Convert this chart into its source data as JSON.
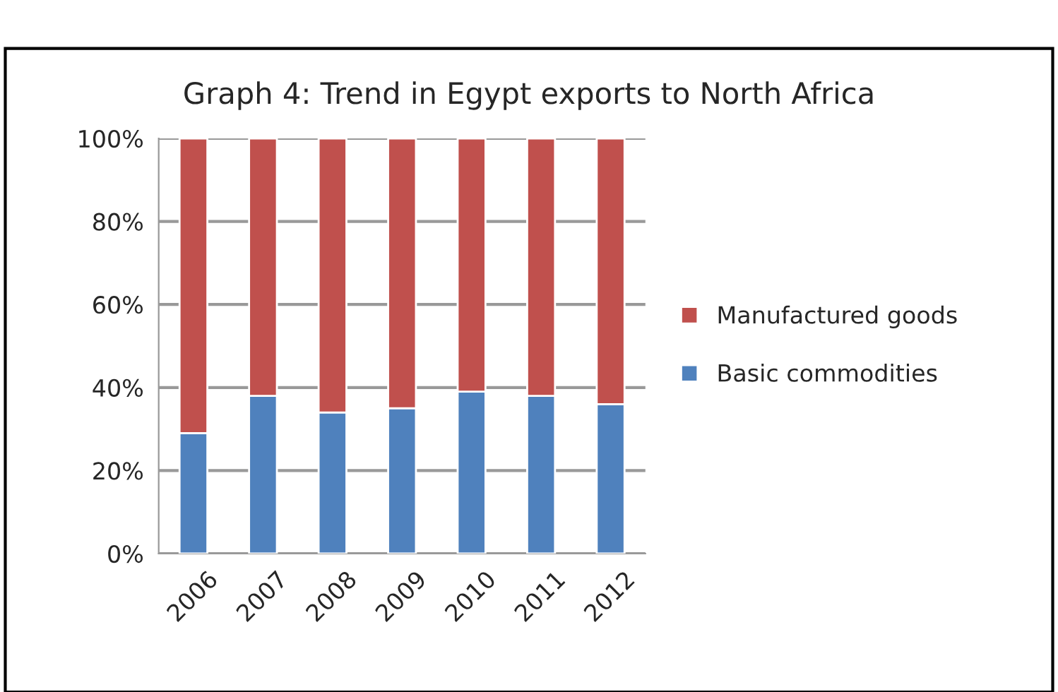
{
  "chart_data": {
    "type": "bar",
    "title": "Graph 4: Trend in Egypt exports to North Africa",
    "categories": [
      "2006",
      "2007",
      "2008",
      "2009",
      "2010",
      "2011",
      "2012"
    ],
    "stacked": true,
    "series": [
      {
        "name": "Basic commodities",
        "color": "#4f81bd",
        "values": [
          29,
          38,
          34,
          35,
          39,
          38,
          36
        ]
      },
      {
        "name": "Manufactured goods",
        "color": "#c0504d",
        "values": [
          71,
          62,
          66,
          65,
          61,
          62,
          64
        ]
      }
    ],
    "ylim": [
      0,
      100
    ],
    "yticks": [
      {
        "value": 0,
        "label": "0%"
      },
      {
        "value": 20,
        "label": "20%"
      },
      {
        "value": 40,
        "label": "40%"
      },
      {
        "value": 60,
        "label": "60%"
      },
      {
        "value": 80,
        "label": "80%"
      },
      {
        "value": 100,
        "label": "100%"
      }
    ],
    "grid": "y",
    "legend": "right"
  }
}
